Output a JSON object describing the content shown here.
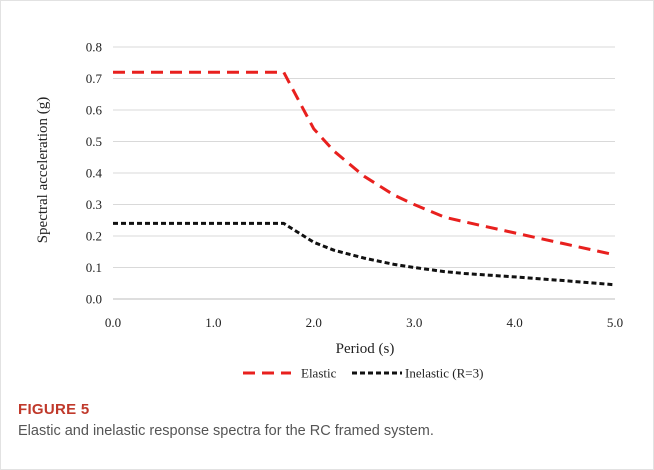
{
  "figure": {
    "label": "FIGURE 5",
    "caption": "Elastic and inelastic response spectra for the RC framed system."
  },
  "chart_data": {
    "type": "line",
    "title": "",
    "xlabel": "Period (s)",
    "ylabel": "Spectral acceleration (g)",
    "xlim": [
      0,
      5
    ],
    "ylim": [
      0,
      0.8
    ],
    "xticks": [
      0,
      1,
      2,
      3,
      4,
      5
    ],
    "xtick_labels": [
      "0.0",
      "1.0",
      "2.0",
      "3.0",
      "4.0",
      "5.0"
    ],
    "yticks": [
      0,
      0.1,
      0.2,
      0.3,
      0.4,
      0.5,
      0.6,
      0.7,
      0.8
    ],
    "ytick_labels": [
      "0.0",
      "0.1",
      "0.2",
      "0.3",
      "0.4",
      "0.5",
      "0.6",
      "0.7",
      "0.8"
    ],
    "grid": "horizontal",
    "legend_position": "bottom",
    "series": [
      {
        "name": "Elastic",
        "color": "#e8201e",
        "dash": "long-dash",
        "x": [
          0,
          1.7,
          1.8,
          2.0,
          2.2,
          2.5,
          2.8,
          3.0,
          3.3,
          3.5,
          4.0,
          4.5,
          5.0
        ],
        "y": [
          0.72,
          0.72,
          0.66,
          0.54,
          0.47,
          0.39,
          0.33,
          0.3,
          0.26,
          0.245,
          0.21,
          0.175,
          0.14
        ]
      },
      {
        "name": "Inelastic (R=3)",
        "color": "#111111",
        "dash": "short-dash",
        "x": [
          0,
          1.7,
          1.8,
          2.0,
          2.2,
          2.5,
          2.8,
          3.0,
          3.3,
          3.5,
          4.0,
          4.5,
          5.0
        ],
        "y": [
          0.24,
          0.24,
          0.22,
          0.18,
          0.155,
          0.13,
          0.11,
          0.1,
          0.087,
          0.081,
          0.07,
          0.058,
          0.045
        ]
      }
    ]
  }
}
